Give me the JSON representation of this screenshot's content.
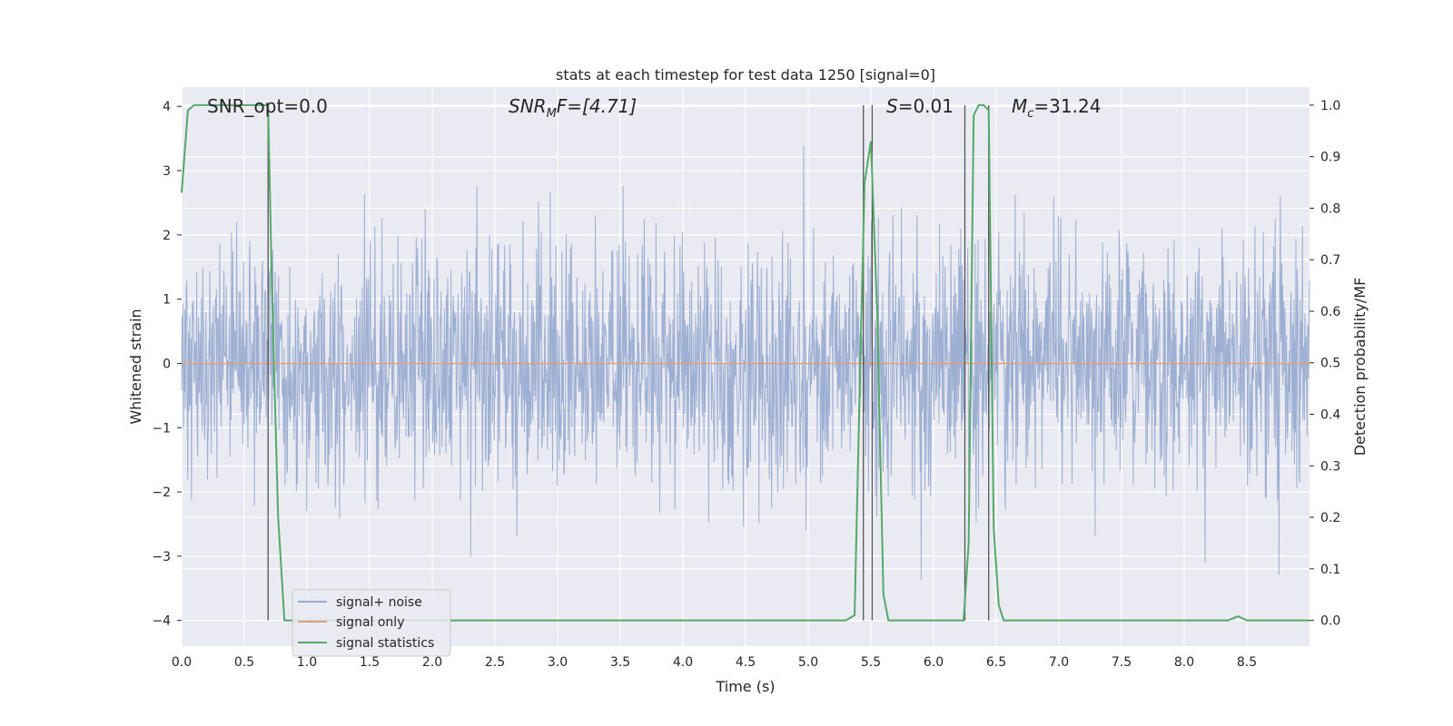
{
  "chart_data": {
    "type": "line",
    "title": "stats at each timestep for test data 1250 [signal=0]",
    "xlabel": "Time (s)",
    "ylabel": "Whitened strain",
    "ylabel_right": "Detection probability/MF",
    "xlim": [
      0,
      9.0
    ],
    "ylim": [
      -4.4,
      4.3
    ],
    "ylim_right": [
      -0.05,
      1.035
    ],
    "x_ticks": [
      "0.0",
      "0.5",
      "1.0",
      "1.5",
      "2.0",
      "2.5",
      "3.0",
      "3.5",
      "4.0",
      "4.5",
      "5.0",
      "5.5",
      "6.0",
      "6.5",
      "7.0",
      "7.5",
      "8.0",
      "8.5"
    ],
    "y_ticks": [
      "−4",
      "−3",
      "−2",
      "−1",
      "0",
      "1",
      "2",
      "3",
      "4"
    ],
    "y_right_ticks": [
      "0.0",
      "0.1",
      "0.2",
      "0.3",
      "0.4",
      "0.5",
      "0.6",
      "0.7",
      "0.8",
      "0.9",
      "1.0"
    ],
    "grid": true,
    "legend_position": "lower-left",
    "annotations": {
      "snr_opt": "SNR_opt=0.0",
      "snr_mf_label": "SNR",
      "snr_mf_sub": "M",
      "snr_mf_rest": "F=[4.71]",
      "s_label": "S",
      "s_rest": "=0.01",
      "mc_label": "M",
      "mc_sub": "c",
      "mc_rest": "=31.24"
    },
    "series": [
      {
        "name": "signal+ noise",
        "color": "#99acd0",
        "note": "dense whitened noise, roughly between -2.5 and 2.5 with spikes to about +3.6 / -3.9"
      },
      {
        "name": "signal only",
        "color": "#dd9f7c",
        "values_constant": 0.0
      },
      {
        "name": "signal statistics",
        "color": "#55a868",
        "axis": "right",
        "x": [
          0.0,
          0.05,
          0.1,
          0.2,
          0.3,
          0.4,
          0.5,
          0.6,
          0.65,
          0.69,
          0.72,
          0.77,
          0.82,
          5.0,
          5.3,
          5.37,
          5.42,
          5.45,
          5.5,
          5.55,
          5.6,
          5.64,
          5.7,
          6.24,
          6.28,
          6.32,
          6.36,
          6.4,
          6.44,
          6.48,
          6.52,
          6.56,
          6.6,
          8.35,
          8.43,
          8.5,
          8.6,
          9.0
        ],
        "y": [
          0.83,
          0.99,
          1.0,
          1.0,
          1.0,
          1.0,
          1.0,
          1.0,
          1.0,
          1.0,
          0.65,
          0.2,
          0.0,
          0.0,
          0.0,
          0.01,
          0.55,
          0.85,
          0.93,
          0.6,
          0.05,
          0.0,
          0.0,
          0.0,
          0.15,
          0.98,
          1.0,
          1.0,
          0.99,
          0.18,
          0.03,
          0.0,
          0.0,
          0.0,
          0.008,
          0.0,
          0.0,
          0.0
        ]
      }
    ],
    "vertical_lines": [
      0.69,
      5.44,
      5.51,
      6.25,
      6.44
    ]
  }
}
